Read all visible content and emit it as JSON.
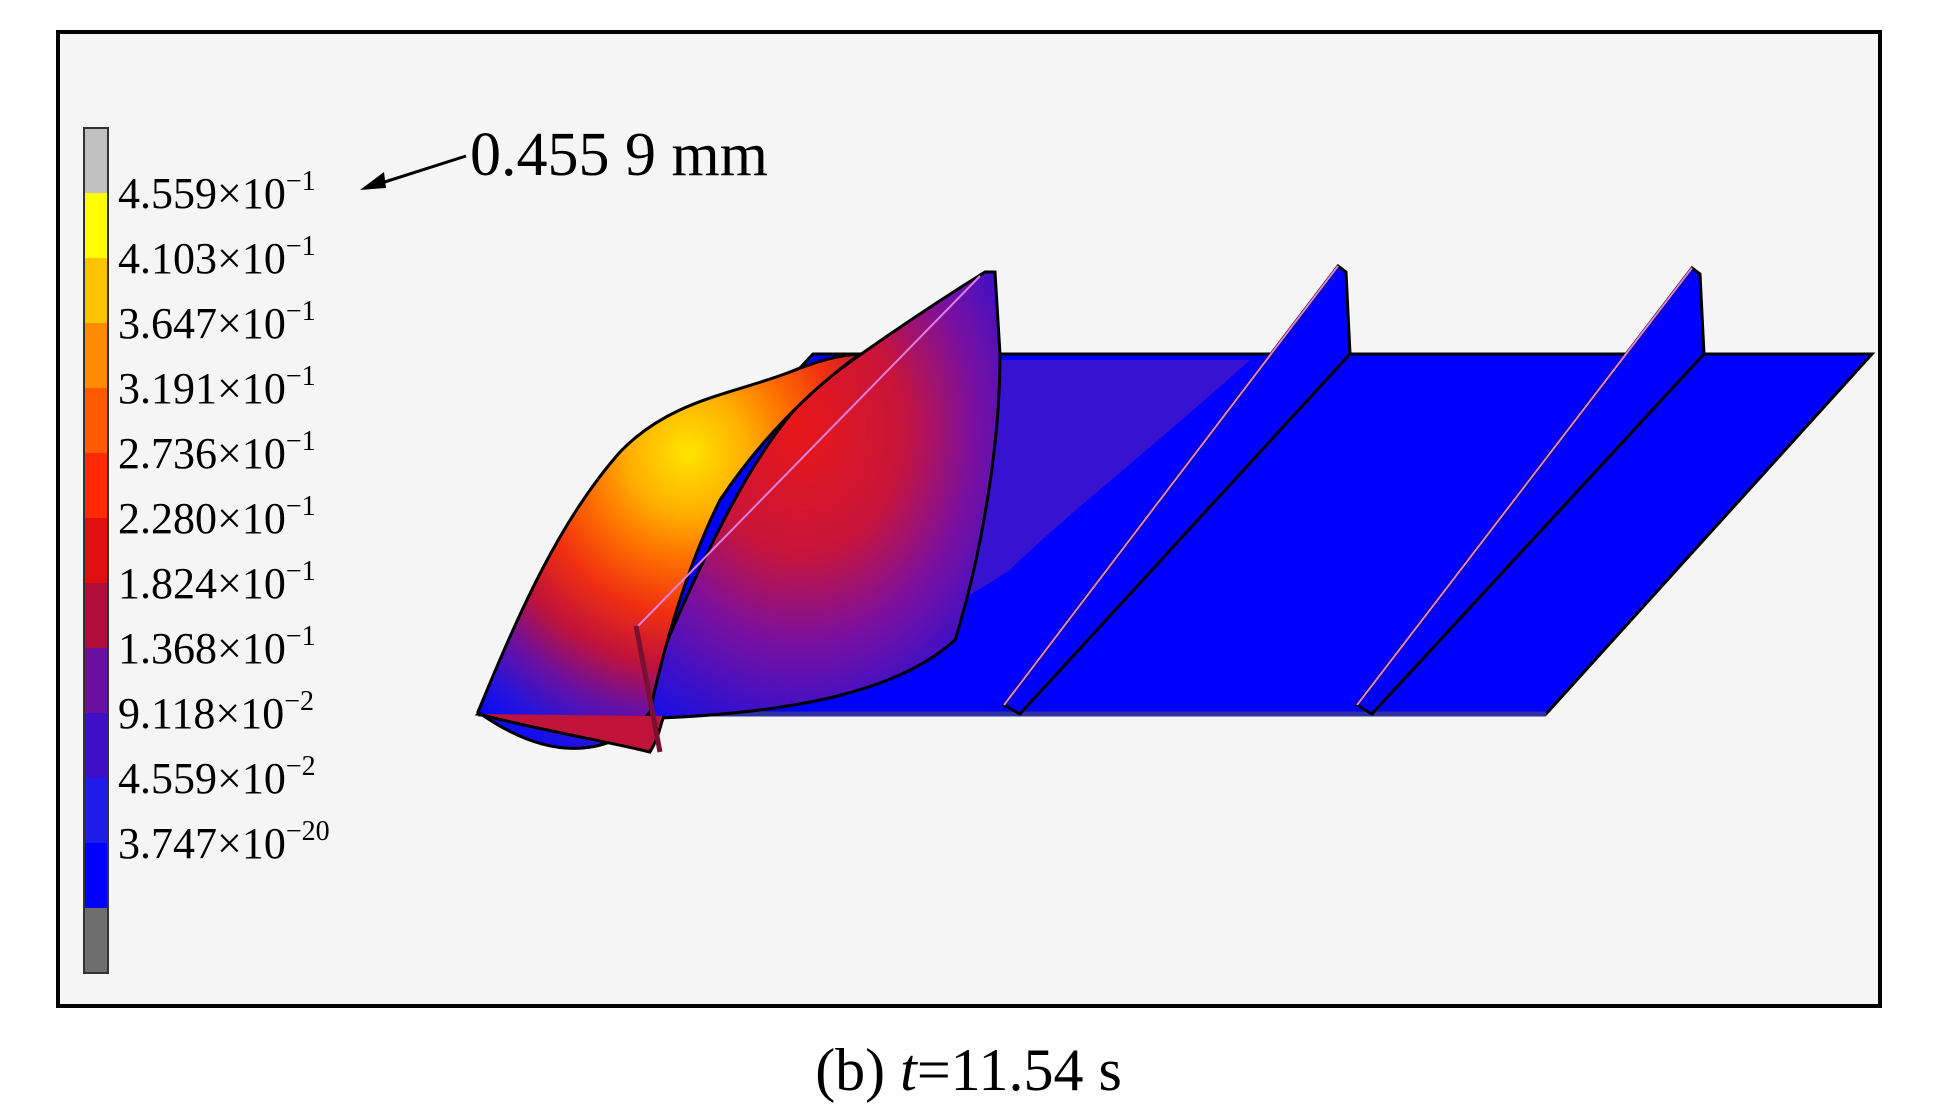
{
  "legend": {
    "colors": [
      "#c0c0c0",
      "#ffff00",
      "#ffc400",
      "#ff8c00",
      "#ff5a00",
      "#ff2a00",
      "#e01010",
      "#b00d3c",
      "#6a0fa0",
      "#3d10c8",
      "#1d1ce8",
      "#0000ff",
      "#6e6e6e"
    ],
    "labels": [
      {
        "mantissa": "4.559",
        "times": "×10",
        "exp": "−1"
      },
      {
        "mantissa": "4.103",
        "times": "×10",
        "exp": "−1"
      },
      {
        "mantissa": "3.647",
        "times": "×10",
        "exp": "−1"
      },
      {
        "mantissa": "3.191",
        "times": "×10",
        "exp": "−1"
      },
      {
        "mantissa": "2.736",
        "times": "×10",
        "exp": "−1"
      },
      {
        "mantissa": "2.280",
        "times": "×10",
        "exp": "−1"
      },
      {
        "mantissa": "1.824",
        "times": "×10",
        "exp": "−1"
      },
      {
        "mantissa": "1.368",
        "times": "×10",
        "exp": "−1"
      },
      {
        "mantissa": "9.118",
        "times": "×10",
        "exp": "−2"
      },
      {
        "mantissa": "4.559",
        "times": "×10",
        "exp": "−2"
      },
      {
        "mantissa": "3.747",
        "times": "×10",
        "exp": "−20"
      }
    ]
  },
  "annotation": {
    "max_value": "0.455 9 mm"
  },
  "caption": {
    "prefix": "(b) ",
    "var": "t",
    "rest": "=11.54 s"
  },
  "model_colors": {
    "base_blue": "#0000ff",
    "edge": "#000000",
    "mesh_line": "#e080e0"
  }
}
